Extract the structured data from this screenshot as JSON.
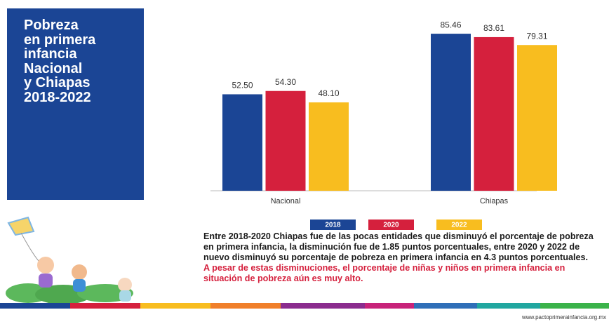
{
  "header": {
    "title_lines": [
      "Pobreza",
      "en primera",
      "infancia",
      "Nacional",
      "y Chiapas",
      "2018-2022"
    ]
  },
  "chart_data": {
    "type": "bar",
    "categories": [
      "Nacional",
      "Chiapas"
    ],
    "series": [
      {
        "name": "2018",
        "color": "#1b4595",
        "values": [
          52.5,
          85.46
        ],
        "value_labels": [
          "52.50",
          "85.46"
        ]
      },
      {
        "name": "2020",
        "color": "#d5203d",
        "values": [
          54.3,
          83.61
        ],
        "value_labels": [
          "54.30",
          "83.61"
        ]
      },
      {
        "name": "2022",
        "color": "#f8bd1f",
        "values": [
          48.1,
          79.31
        ],
        "value_labels": [
          "48.10",
          "79.31"
        ]
      }
    ]
  },
  "text": {
    "paragraph1": "Entre 2018-2020 Chiapas fue de las pocas entidades que disminuyó el porcentaje de pobreza en primera infancia, la disminución fue de 1.85 puntos porcentuales, entre 2020 y 2022 de nuevo disminuyó su porcentaje de pobreza en primera infancia en 4.3 puntos porcentuales.",
    "paragraph2": "A pesar de estas disminuciones, el porcentaje de niñas y niños en primera infancia en situación de pobreza aún es muy alto."
  },
  "footer_url": "www.pactoprimerainfancia.org.mx"
}
